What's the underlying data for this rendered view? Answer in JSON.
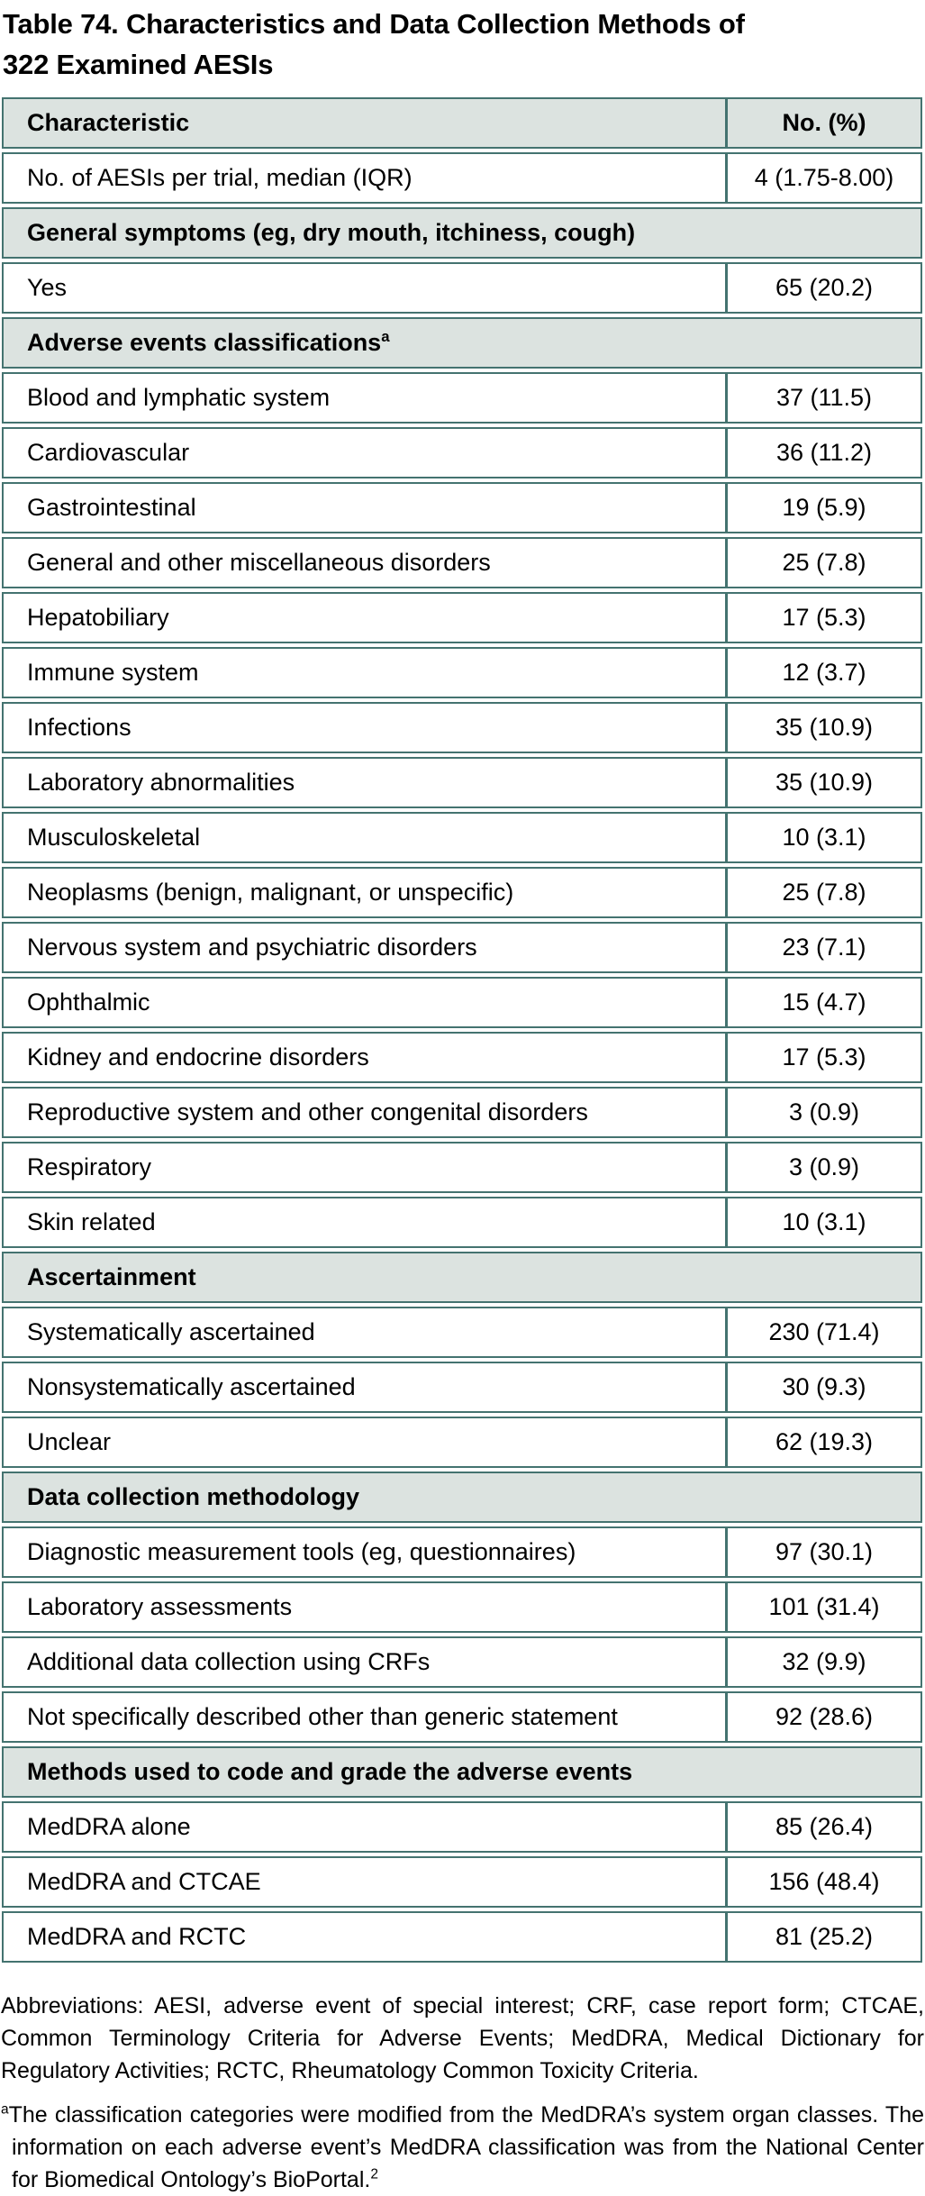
{
  "title": {
    "line1": "Table 74. Characteristics and Data Collection Methods of",
    "line2": "322 Examined AESIs"
  },
  "colors": {
    "table_border": "#447370",
    "section_background": "#dce3e0",
    "text": "#000000"
  },
  "table": {
    "columns": [
      "Characteristic",
      "No. (%)"
    ],
    "rows": [
      {
        "type": "data",
        "label": "No. of AESIs per trial, median (IQR)",
        "value": "4 (1.75-8.00)"
      },
      {
        "type": "section",
        "label": "General symptoms (eg, dry mouth, itchiness, cough)"
      },
      {
        "type": "data",
        "label": "Yes",
        "value": "65 (20.2)"
      },
      {
        "type": "section",
        "label": "Adverse events classifications",
        "sup": "a"
      },
      {
        "type": "data",
        "label": "Blood and lymphatic system",
        "value": "37 (11.5)"
      },
      {
        "type": "data",
        "label": "Cardiovascular",
        "value": "36 (11.2)"
      },
      {
        "type": "data",
        "label": "Gastrointestinal",
        "value": "19 (5.9)"
      },
      {
        "type": "data",
        "label": "General and other miscellaneous disorders",
        "value": "25 (7.8)"
      },
      {
        "type": "data",
        "label": "Hepatobiliary",
        "value": "17 (5.3)"
      },
      {
        "type": "data",
        "label": "Immune system",
        "value": "12 (3.7)"
      },
      {
        "type": "data",
        "label": "Infections",
        "value": "35 (10.9)"
      },
      {
        "type": "data",
        "label": "Laboratory abnormalities",
        "value": "35 (10.9)"
      },
      {
        "type": "data",
        "label": "Musculoskeletal",
        "value": "10 (3.1)"
      },
      {
        "type": "data",
        "label": "Neoplasms (benign, malignant, or unspecific)",
        "value": "25 (7.8)"
      },
      {
        "type": "data",
        "label": "Nervous system and psychiatric disorders",
        "value": "23 (7.1)"
      },
      {
        "type": "data",
        "label": "Ophthalmic",
        "value": "15 (4.7)"
      },
      {
        "type": "data",
        "label": "Kidney and endocrine disorders",
        "value": "17 (5.3)"
      },
      {
        "type": "data",
        "label": "Reproductive system and other congenital disorders",
        "value": "3 (0.9)"
      },
      {
        "type": "data",
        "label": "Respiratory",
        "value": "3 (0.9)"
      },
      {
        "type": "data",
        "label": "Skin related",
        "value": "10 (3.1)"
      },
      {
        "type": "section",
        "label": "Ascertainment"
      },
      {
        "type": "data",
        "label": "Systematically ascertained",
        "value": "230 (71.4)"
      },
      {
        "type": "data",
        "label": "Nonsystematically ascertained",
        "value": "30 (9.3)"
      },
      {
        "type": "data",
        "label": "Unclear",
        "value": "62 (19.3)"
      },
      {
        "type": "section",
        "label": "Data collection methodology"
      },
      {
        "type": "data",
        "label": "Diagnostic measurement tools (eg, questionnaires)",
        "value": "97 (30.1)"
      },
      {
        "type": "data",
        "label": "Laboratory assessments",
        "value": "101 (31.4)"
      },
      {
        "type": "data",
        "label": "Additional data collection using CRFs",
        "value": "32 (9.9)"
      },
      {
        "type": "data",
        "label": "Not specifically described other than generic statement",
        "value": "92 (28.6)"
      },
      {
        "type": "section",
        "label": "Methods used to code and grade the adverse events"
      },
      {
        "type": "data",
        "label": "MedDRA alone",
        "value": "85 (26.4)"
      },
      {
        "type": "data",
        "label": "MedDRA and CTCAE",
        "value": "156 (48.4)"
      },
      {
        "type": "data",
        "label": "MedDRA and RCTC",
        "value": "81 (25.2)"
      }
    ]
  },
  "footnotes": {
    "abbreviations": "Abbreviations: AESI, adverse event of special interest; CRF, case report form; CTCAE, Common Terminology Criteria for Adverse Events; MedDRA, Medical Dictionary for Regulatory Activities; RCTC, Rheumatology Common Toxicity Criteria.",
    "note_a_marker": "a",
    "note_a_text": "The classification categories were modified from the MedDRA’s system organ classes. The information on each adverse event’s MedDRA classification was from the National Center for Biomedical Ontology’s BioPortal.",
    "note_a_reference": "2"
  }
}
